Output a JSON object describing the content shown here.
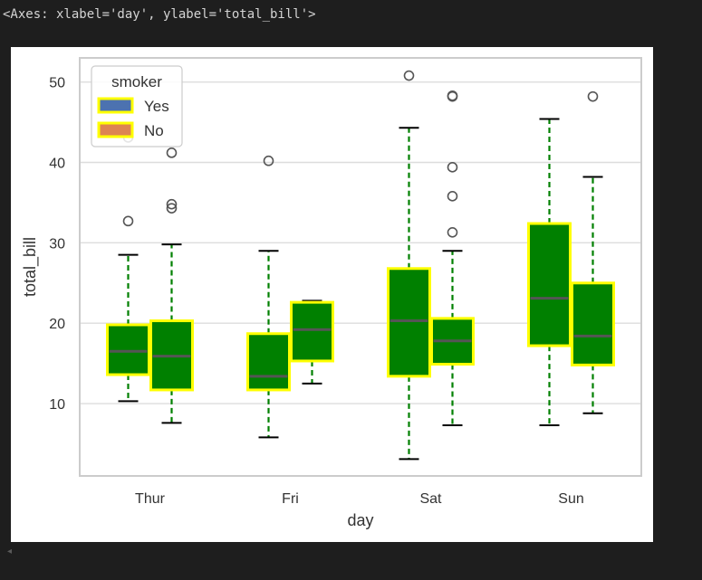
{
  "output_text": "<Axes: xlabel='day', ylabel='total_bill'>",
  "scroll_arrow": "◂",
  "chart_data": {
    "type": "box",
    "xlabel": "day",
    "ylabel": "total_bill",
    "ylim": [
      1.0,
      53.0
    ],
    "yticks": [
      10,
      20,
      30,
      40,
      50
    ],
    "grid": true,
    "categories": [
      "Thur",
      "Fri",
      "Sat",
      "Sun"
    ],
    "legend": {
      "title": "smoker",
      "placement": "top-left",
      "entries": [
        {
          "label": "Yes",
          "swatch": "#4c72b0"
        },
        {
          "label": "No",
          "swatch": "#dd8452"
        }
      ]
    },
    "style": {
      "box_fill": "#008000",
      "box_edge": "#ffff00",
      "whisker": "#008000",
      "cap": "#000000",
      "median": "#555555",
      "outlier_edge": "#555555",
      "grid_color": "#dddddd",
      "spine_color": "#cccccc"
    },
    "series": [
      {
        "name": "Yes",
        "boxes": [
          {
            "category": "Thur",
            "whislo": 10.3,
            "q1": 13.6,
            "med": 16.5,
            "q3": 19.8,
            "whishi": 28.5,
            "fliers": [
              32.7,
              43.1
            ]
          },
          {
            "category": "Fri",
            "whislo": 5.8,
            "q1": 11.7,
            "med": 13.4,
            "q3": 18.7,
            "whishi": 29.0,
            "fliers": [
              40.2
            ]
          },
          {
            "category": "Sat",
            "whislo": 3.1,
            "q1": 13.4,
            "med": 20.3,
            "q3": 26.8,
            "whishi": 44.3,
            "fliers": [
              50.8
            ]
          },
          {
            "category": "Sun",
            "whislo": 7.3,
            "q1": 17.2,
            "med": 23.1,
            "q3": 32.4,
            "whishi": 45.4,
            "fliers": []
          }
        ]
      },
      {
        "name": "No",
        "boxes": [
          {
            "category": "Thur",
            "whislo": 7.6,
            "q1": 11.7,
            "med": 15.9,
            "q3": 20.3,
            "whishi": 29.8,
            "fliers": [
              34.3,
              34.8,
              41.2
            ]
          },
          {
            "category": "Fri",
            "whislo": 12.5,
            "q1": 15.3,
            "med": 19.2,
            "q3": 22.6,
            "whishi": 22.8,
            "fliers": []
          },
          {
            "category": "Sat",
            "whislo": 7.3,
            "q1": 14.9,
            "med": 17.8,
            "q3": 20.6,
            "whishi": 29.0,
            "fliers": [
              31.3,
              35.8,
              39.4,
              48.2,
              48.3
            ]
          },
          {
            "category": "Sun",
            "whislo": 8.8,
            "q1": 14.8,
            "med": 18.4,
            "q3": 25.0,
            "whishi": 38.2,
            "fliers": [
              48.2
            ]
          }
        ]
      }
    ]
  }
}
